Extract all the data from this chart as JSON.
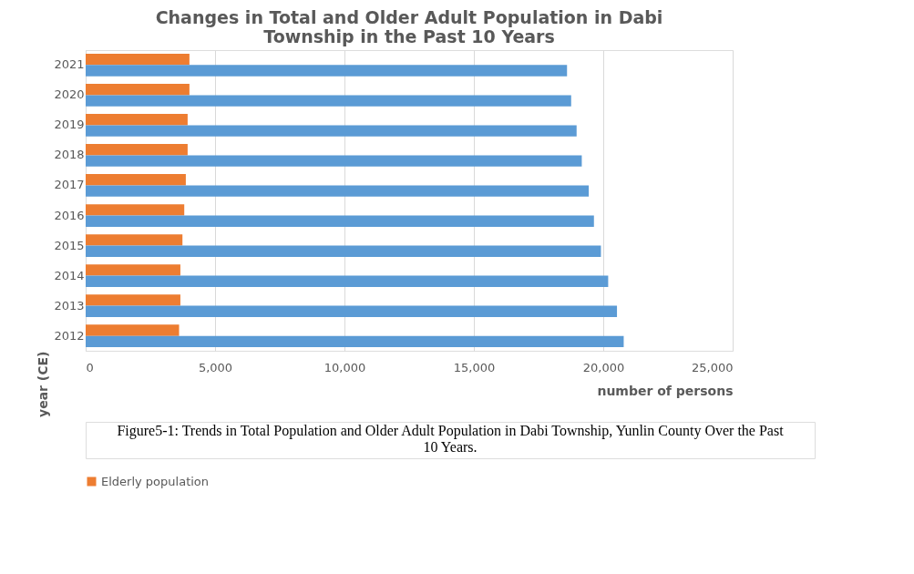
{
  "chart_data": {
    "type": "bar",
    "orientation": "horizontal",
    "title": "Changes in Total and Older Adult Population in Dabi Township in the Past 10 Years",
    "xlabel": "number of persons",
    "ylabel": "year (CE)",
    "categories": [
      "2021",
      "2020",
      "2019",
      "2018",
      "2017",
      "2016",
      "2015",
      "2014",
      "2013",
      "2012"
    ],
    "series": [
      {
        "name": "Elderly population",
        "color": "#ed7d31",
        "values": [
          4010,
          4010,
          3940,
          3940,
          3870,
          3810,
          3740,
          3660,
          3660,
          3610
        ]
      },
      {
        "color": "#5b9bd5",
        "values": [
          18600,
          18760,
          18970,
          19170,
          19440,
          19640,
          19910,
          20190,
          20530,
          20790
        ]
      }
    ],
    "xlim": [
      0,
      25000
    ],
    "xticks": [
      {
        "value": 0,
        "label": "0"
      },
      {
        "value": 5000,
        "label": "5,000"
      },
      {
        "value": 10000,
        "label": "10,000"
      },
      {
        "value": 15000,
        "label": "15,000"
      },
      {
        "value": 20000,
        "label": "20,000"
      },
      {
        "value": 25000,
        "label": "25,000"
      }
    ],
    "grid": "x",
    "legend": "bottom",
    "annotations": [
      "Figure5-1: Trends in Total Population and Older Adult Population in Dabi Township, Yunlin County Over the Past 10 Years."
    ]
  }
}
